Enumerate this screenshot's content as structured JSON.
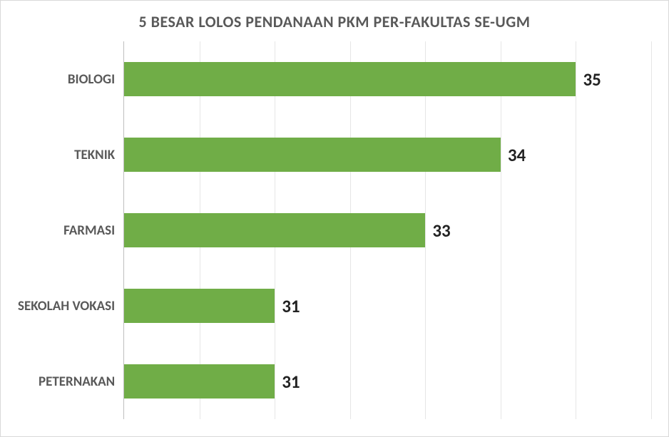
{
  "chart": {
    "type": "bar-horizontal",
    "title": "5 BESAR LOLOS PENDANAAN PKM PER-FAKULTAS SE-UGM",
    "title_fontsize": 22,
    "title_fontweight": 700,
    "title_color": "#595959",
    "background_color": "#ffffff",
    "border_color": "#d9d9d9",
    "axis_line_color": "#bfbfbf",
    "grid_color": "#e6e6e6",
    "label_color": "#595959",
    "label_fontsize": 19,
    "label_fontweight": 700,
    "value_color": "#222222",
    "value_fontsize": 25,
    "value_fontweight": 700,
    "bar_color": "#70ad47",
    "bar_height_ratio": 0.46,
    "x_min": 29,
    "x_max": 36,
    "x_tick_step": 1,
    "categories": [
      "BIOLOGI",
      "TEKNIK",
      "FARMASI",
      "SEKOLAH VOKASI",
      "PETERNAKAN"
    ],
    "values": [
      35,
      34,
      33,
      31,
      31
    ]
  }
}
